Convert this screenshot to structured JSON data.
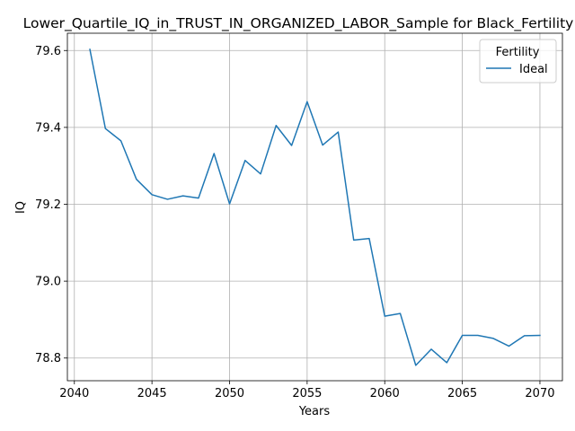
{
  "chart_data": {
    "type": "line",
    "title": "Lower_Quartile_IQ_in_TRUST_IN_ORGANIZED_LABOR_Sample for Black_Fertility",
    "xlabel": "Years",
    "ylabel": "IQ",
    "xlim": [
      2039.55,
      2071.45
    ],
    "ylim": [
      78.741,
      79.645
    ],
    "xticks": [
      2040,
      2045,
      2050,
      2055,
      2060,
      2065,
      2070
    ],
    "yticks": [
      78.8,
      79.0,
      79.2,
      79.4,
      79.6
    ],
    "xtick_labels": [
      "2040",
      "2045",
      "2050",
      "2055",
      "2060",
      "2065",
      "2070"
    ],
    "ytick_labels": [
      "78.8",
      "79.0",
      "79.2",
      "79.4",
      "79.6"
    ],
    "grid": true,
    "legend": {
      "title": "Fertility",
      "placement": "top-right"
    },
    "series": [
      {
        "name": "Ideal",
        "color": "#1f77b4",
        "x": [
          2041,
          2042,
          2043,
          2044,
          2045,
          2046,
          2047,
          2048,
          2049,
          2050,
          2051,
          2052,
          2053,
          2054,
          2055,
          2056,
          2057,
          2058,
          2059,
          2060,
          2061,
          2062,
          2063,
          2064,
          2065,
          2066,
          2067,
          2068,
          2069,
          2070
        ],
        "y": [
          79.603,
          79.397,
          79.365,
          79.265,
          79.225,
          79.213,
          79.222,
          79.216,
          79.332,
          79.201,
          79.314,
          79.279,
          79.405,
          79.353,
          79.467,
          79.354,
          79.388,
          79.107,
          79.111,
          78.909,
          78.916,
          78.781,
          78.823,
          78.788,
          78.859,
          78.859,
          78.851,
          78.831,
          78.858,
          78.859
        ]
      }
    ]
  }
}
